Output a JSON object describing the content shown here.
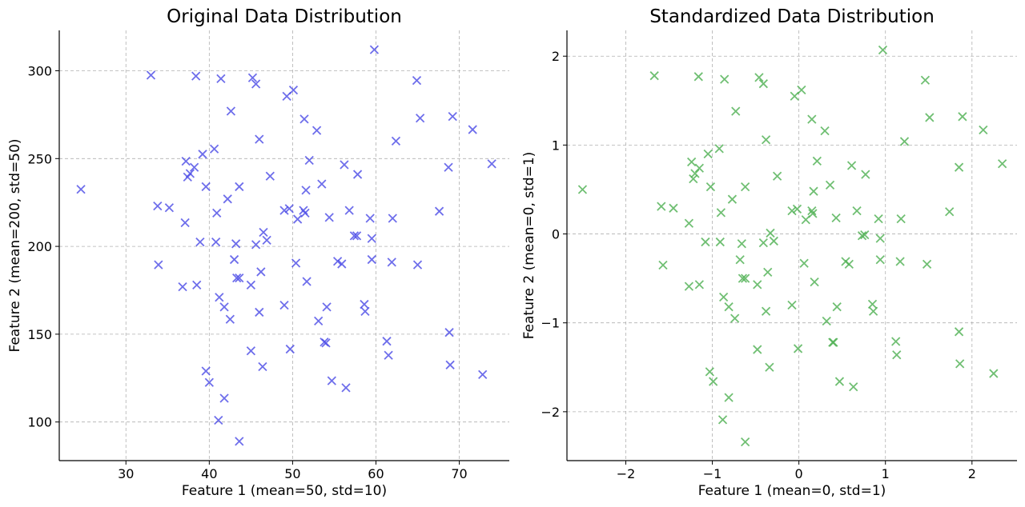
{
  "chart_data": [
    {
      "type": "scatter",
      "title": "Original Data Distribution",
      "xlabel": "Feature 1 (mean=50, std=10)",
      "ylabel": "Feature 2 (mean=200, std=50)",
      "xlim": [
        22,
        76
      ],
      "ylim": [
        78,
        323
      ],
      "xticks": [
        30,
        40,
        50,
        60,
        70
      ],
      "yticks": [
        100,
        150,
        200,
        250,
        300
      ],
      "grid": true,
      "marker": "x",
      "color": "#4a4ae6",
      "points": [
        [
          24.6,
          232.5
        ],
        [
          33.0,
          297.5
        ],
        [
          33.8,
          223.0
        ],
        [
          33.9,
          189.5
        ],
        [
          35.2,
          222.0
        ],
        [
          36.8,
          177.0
        ],
        [
          37.1,
          213.5
        ],
        [
          37.2,
          248.5
        ],
        [
          37.4,
          239.5
        ],
        [
          37.7,
          241.5
        ],
        [
          38.2,
          245.0
        ],
        [
          38.4,
          297.0
        ],
        [
          38.5,
          178.0
        ],
        [
          38.9,
          202.5
        ],
        [
          39.2,
          252.5
        ],
        [
          39.6,
          234.0
        ],
        [
          39.6,
          129.0
        ],
        [
          40.0,
          122.5
        ],
        [
          40.6,
          255.5
        ],
        [
          40.8,
          202.5
        ],
        [
          40.9,
          219.0
        ],
        [
          41.1,
          101.0
        ],
        [
          41.2,
          171.0
        ],
        [
          41.4,
          295.5
        ],
        [
          41.8,
          165.5
        ],
        [
          41.8,
          113.5
        ],
        [
          42.2,
          227.0
        ],
        [
          42.5,
          158.5
        ],
        [
          42.6,
          277.0
        ],
        [
          43.0,
          192.5
        ],
        [
          43.2,
          201.5
        ],
        [
          43.3,
          182.0
        ],
        [
          43.6,
          182.0
        ],
        [
          43.6,
          234.0
        ],
        [
          43.6,
          89.0
        ],
        [
          45.0,
          178.0
        ],
        [
          45.0,
          140.5
        ],
        [
          45.2,
          296.0
        ],
        [
          45.6,
          201.0
        ],
        [
          45.6,
          292.5
        ],
        [
          46.0,
          162.5
        ],
        [
          46.0,
          261.0
        ],
        [
          46.2,
          185.5
        ],
        [
          46.4,
          131.5
        ],
        [
          46.5,
          208.0
        ],
        [
          46.9,
          203.5
        ],
        [
          47.3,
          240.0
        ],
        [
          49.0,
          166.5
        ],
        [
          49.0,
          220.5
        ],
        [
          49.3,
          285.5
        ],
        [
          49.6,
          221.5
        ],
        [
          49.7,
          141.5
        ],
        [
          50.1,
          289.0
        ],
        [
          50.4,
          190.5
        ],
        [
          50.6,
          215.5
        ],
        [
          51.3,
          220.5
        ],
        [
          51.4,
          272.5
        ],
        [
          51.5,
          219.0
        ],
        [
          51.6,
          232.0
        ],
        [
          51.7,
          180.0
        ],
        [
          52.0,
          249.0
        ],
        [
          52.9,
          266.0
        ],
        [
          53.1,
          157.5
        ],
        [
          53.5,
          235.5
        ],
        [
          53.8,
          145.5
        ],
        [
          54.0,
          145.0
        ],
        [
          54.1,
          165.5
        ],
        [
          54.4,
          216.5
        ],
        [
          54.7,
          123.5
        ],
        [
          55.4,
          191.5
        ],
        [
          55.9,
          190.0
        ],
        [
          56.2,
          246.5
        ],
        [
          56.4,
          119.5
        ],
        [
          56.8,
          220.5
        ],
        [
          57.4,
          206.0
        ],
        [
          57.7,
          206.0
        ],
        [
          57.8,
          241.0
        ],
        [
          58.6,
          167.0
        ],
        [
          58.7,
          163.0
        ],
        [
          59.3,
          216.0
        ],
        [
          59.5,
          192.5
        ],
        [
          59.5,
          204.5
        ],
        [
          59.8,
          312.0
        ],
        [
          61.3,
          146.0
        ],
        [
          61.5,
          138.0
        ],
        [
          61.9,
          191.0
        ],
        [
          62.0,
          216.0
        ],
        [
          62.4,
          260.0
        ],
        [
          64.9,
          294.5
        ],
        [
          65.0,
          189.5
        ],
        [
          65.3,
          273.0
        ],
        [
          67.6,
          220.0
        ],
        [
          68.7,
          245.0
        ],
        [
          68.8,
          151.0
        ],
        [
          68.9,
          132.5
        ],
        [
          69.2,
          274.0
        ],
        [
          71.6,
          266.5
        ],
        [
          72.8,
          127.0
        ],
        [
          73.9,
          247.0
        ]
      ]
    },
    {
      "type": "scatter",
      "title": "Standardized Data Distribution",
      "xlabel": "Feature 1 (mean=0, std=1)",
      "ylabel": "Feature 2 (mean=0, std=1)",
      "xlim": [
        -2.68,
        2.52
      ],
      "ylim": [
        -2.55,
        2.29
      ],
      "xticks": [
        -2,
        -1,
        0,
        1,
        2
      ],
      "xtick_labels": [
        "−2",
        "−1",
        "0",
        "1",
        "2"
      ],
      "yticks": [
        -2,
        -1,
        0,
        1,
        2
      ],
      "ytick_labels": [
        "−2",
        "−1",
        "0",
        "1",
        "2"
      ],
      "grid": true,
      "marker": "x",
      "color": "#4caf50",
      "points": [
        [
          -2.5,
          0.5
        ],
        [
          -1.67,
          1.78
        ],
        [
          -1.59,
          0.31
        ],
        [
          -1.57,
          -0.35
        ],
        [
          -1.45,
          0.29
        ],
        [
          -1.27,
          -0.59
        ],
        [
          -1.27,
          0.12
        ],
        [
          -1.24,
          0.81
        ],
        [
          -1.22,
          0.62
        ],
        [
          -1.2,
          0.68
        ],
        [
          -1.16,
          1.77
        ],
        [
          -1.15,
          -0.57
        ],
        [
          -1.15,
          0.74
        ],
        [
          -1.08,
          -0.09
        ],
        [
          -1.05,
          0.9
        ],
        [
          -1.02,
          0.53
        ],
        [
          -1.03,
          -1.55
        ],
        [
          -0.99,
          -1.66
        ],
        [
          -0.92,
          0.96
        ],
        [
          -0.91,
          -0.09
        ],
        [
          -0.9,
          0.24
        ],
        [
          -0.88,
          -2.09
        ],
        [
          -0.87,
          -0.71
        ],
        [
          -0.86,
          1.74
        ],
        [
          -0.81,
          -0.82
        ],
        [
          -0.81,
          -1.84
        ],
        [
          -0.77,
          0.39
        ],
        [
          -0.74,
          -0.95
        ],
        [
          -0.73,
          1.38
        ],
        [
          -0.68,
          -0.29
        ],
        [
          -0.66,
          -0.11
        ],
        [
          -0.65,
          -0.5
        ],
        [
          -0.62,
          -0.5
        ],
        [
          -0.62,
          0.53
        ],
        [
          -0.62,
          -2.34
        ],
        [
          -0.48,
          -0.57
        ],
        [
          -0.48,
          -1.3
        ],
        [
          -0.46,
          1.76
        ],
        [
          -0.41,
          -0.1
        ],
        [
          -0.41,
          1.69
        ],
        [
          -0.38,
          -0.87
        ],
        [
          -0.38,
          1.06
        ],
        [
          -0.36,
          -0.43
        ],
        [
          -0.34,
          -1.5
        ],
        [
          -0.33,
          0.01
        ],
        [
          -0.29,
          -0.08
        ],
        [
          -0.25,
          0.65
        ],
        [
          -0.08,
          -0.8
        ],
        [
          -0.08,
          0.26
        ],
        [
          -0.05,
          1.55
        ],
        [
          -0.02,
          0.28
        ],
        [
          -0.01,
          -1.29
        ],
        [
          0.03,
          1.62
        ],
        [
          0.06,
          -0.33
        ],
        [
          0.08,
          0.16
        ],
        [
          0.15,
          0.26
        ],
        [
          0.15,
          1.29
        ],
        [
          0.16,
          0.23
        ],
        [
          0.17,
          0.48
        ],
        [
          0.18,
          -0.54
        ],
        [
          0.21,
          0.82
        ],
        [
          0.3,
          1.16
        ],
        [
          0.32,
          -0.98
        ],
        [
          0.36,
          0.55
        ],
        [
          0.39,
          -1.22
        ],
        [
          0.4,
          -1.22
        ],
        [
          0.43,
          0.18
        ],
        [
          0.44,
          -0.82
        ],
        [
          0.47,
          -1.66
        ],
        [
          0.54,
          -0.31
        ],
        [
          0.58,
          -0.34
        ],
        [
          0.61,
          0.77
        ],
        [
          0.63,
          -1.72
        ],
        [
          0.67,
          0.26
        ],
        [
          0.73,
          -0.02
        ],
        [
          0.76,
          -0.01
        ],
        [
          0.77,
          0.67
        ],
        [
          0.85,
          -0.79
        ],
        [
          0.86,
          -0.87
        ],
        [
          0.92,
          0.17
        ],
        [
          0.94,
          -0.29
        ],
        [
          0.94,
          -0.05
        ],
        [
          0.97,
          2.07
        ],
        [
          1.12,
          -1.21
        ],
        [
          1.13,
          -1.36
        ],
        [
          1.17,
          -0.31
        ],
        [
          1.18,
          0.17
        ],
        [
          1.22,
          1.04
        ],
        [
          1.46,
          1.73
        ],
        [
          1.48,
          -0.34
        ],
        [
          1.51,
          1.31
        ],
        [
          1.74,
          0.25
        ],
        [
          1.85,
          0.75
        ],
        [
          1.85,
          -1.1
        ],
        [
          1.86,
          -1.46
        ],
        [
          1.89,
          1.32
        ],
        [
          2.13,
          1.17
        ],
        [
          2.25,
          -1.57
        ],
        [
          2.35,
          0.79
        ]
      ]
    }
  ]
}
